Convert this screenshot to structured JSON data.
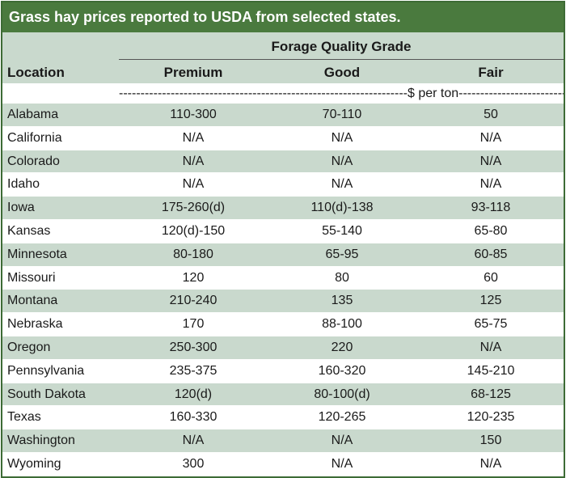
{
  "title": "Grass hay prices reported to USDA from selected states.",
  "header": {
    "group_label": "Forage Quality Grade",
    "location_label": "Location",
    "columns": [
      "Premium",
      "Good",
      "Fair"
    ],
    "units_label": "$ per ton",
    "units_dashes_left": "-------------------------------------------------------------------",
    "units_dashes_right": "--------------------------------------------------------------------"
  },
  "rows": [
    {
      "location": "Alabama",
      "premium": "110-300",
      "good": "70-110",
      "fair": "50"
    },
    {
      "location": "California",
      "premium": "N/A",
      "good": "N/A",
      "fair": "N/A"
    },
    {
      "location": "Colorado",
      "premium": "N/A",
      "good": "N/A",
      "fair": "N/A"
    },
    {
      "location": "Idaho",
      "premium": "N/A",
      "good": "N/A",
      "fair": "N/A"
    },
    {
      "location": "Iowa",
      "premium": "175-260(d)",
      "good": "110(d)-138",
      "fair": "93-118"
    },
    {
      "location": "Kansas",
      "premium": "120(d)-150",
      "good": "55-140",
      "fair": "65-80"
    },
    {
      "location": "Minnesota",
      "premium": "80-180",
      "good": "65-95",
      "fair": "60-85"
    },
    {
      "location": "Missouri",
      "premium": "120",
      "good": "80",
      "fair": "60"
    },
    {
      "location": "Montana",
      "premium": "210-240",
      "good": "135",
      "fair": "125"
    },
    {
      "location": "Nebraska",
      "premium": "170",
      "good": "88-100",
      "fair": "65-75"
    },
    {
      "location": "Oregon",
      "premium": "250-300",
      "good": "220",
      "fair": "N/A"
    },
    {
      "location": "Pennsylvania",
      "premium": "235-375",
      "good": "160-320",
      "fair": "145-210"
    },
    {
      "location": "South Dakota",
      "premium": "120(d)",
      "good": "80-100(d)",
      "fair": "68-125"
    },
    {
      "location": "Texas",
      "premium": "160-330",
      "good": "120-265",
      "fair": "120-235"
    },
    {
      "location": "Washington",
      "premium": "N/A",
      "good": "N/A",
      "fair": "150"
    },
    {
      "location": "Wyoming",
      "premium": "300",
      "good": "N/A",
      "fair": "N/A"
    }
  ],
  "colors": {
    "title_bg": "#4a7a3e",
    "shade": "#c9d9cd",
    "border": "#3d6b35"
  }
}
